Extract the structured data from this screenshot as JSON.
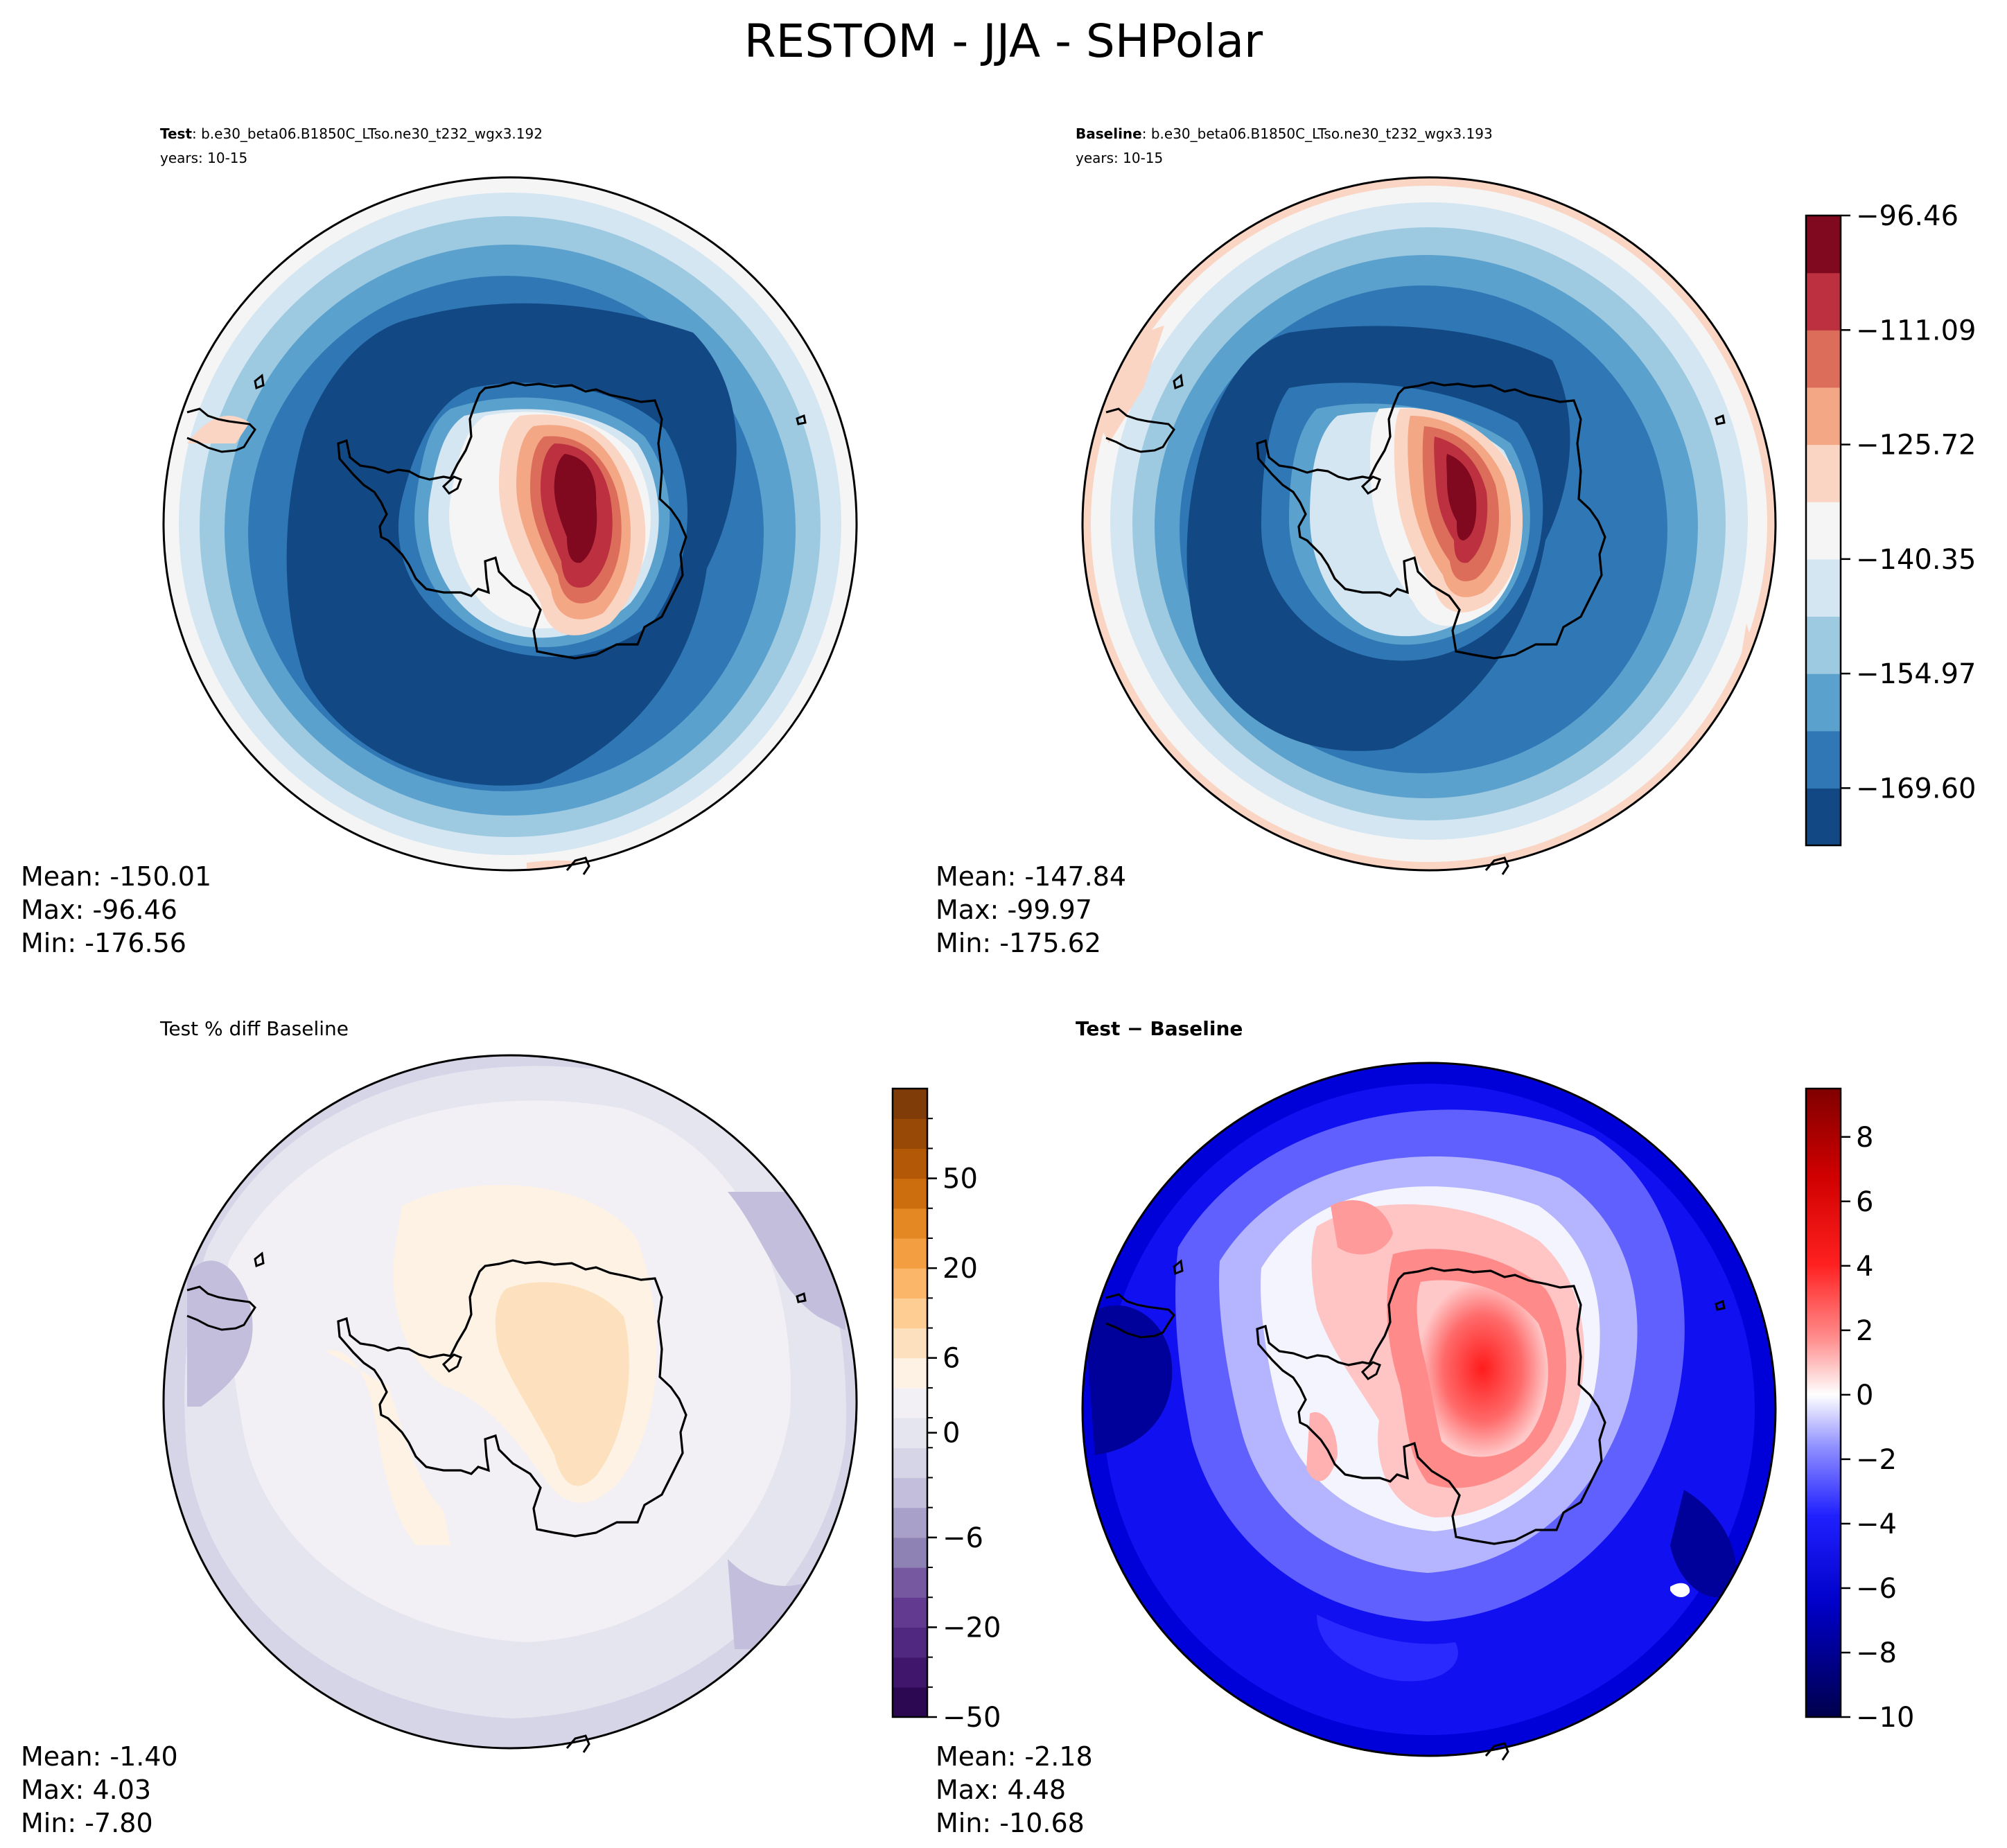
{
  "figure_title": "RESTOM - JJA - SHPolar",
  "chart_data": [
    {
      "type": "heatmap",
      "panel": "test",
      "title_bold": "Test",
      "title_rest": ": b.e30_beta06.B1850C_LTso.ne30_t232_wgx3.192",
      "subtitle": "years: 10-15",
      "stats": [
        "Mean: -150.01",
        "Max: -96.46",
        "Min: -176.56"
      ],
      "projection": "South polar stereographic",
      "field_description": "Strong minimum (~ -176) over the Southern Ocean ring, maximum (~ -96) over East Antarctica"
    },
    {
      "type": "heatmap",
      "panel": "baseline",
      "title_bold": "Baseline",
      "title_rest": ": b.e30_beta06.B1850C_LTso.ne30_t232_wgx3.193",
      "subtitle": "years: 10-15",
      "stats": [
        "Mean: -147.84",
        "Max: -99.97",
        "Min: -175.62"
      ],
      "colorbar": {
        "ticks": [
          "−96.46",
          "−111.09",
          "−125.72",
          "−140.35",
          "−154.97",
          "−169.60"
        ],
        "levels": [
          -176.91,
          -169.6,
          -162.29,
          -154.97,
          -147.66,
          -140.35,
          -133.03,
          -125.72,
          -118.4,
          -111.09,
          -103.78,
          -96.46
        ],
        "colors": [
          "#124984",
          "#2f78b5",
          "#5aa1cd",
          "#9ecae1",
          "#d4e6f1",
          "#f5f5f5",
          "#fbd5c3",
          "#f3a785",
          "#dc6d5b",
          "#bd3040",
          "#80081f"
        ]
      }
    },
    {
      "type": "heatmap",
      "panel": "pct_diff",
      "title": "Test % diff Baseline",
      "stats": [
        "Mean: -1.40",
        "Max:  4.03",
        "Min: -7.80"
      ],
      "colorbar": {
        "ticks": [
          "50",
          "20",
          "6",
          "0",
          "−6",
          "−20",
          "−50"
        ],
        "colors": [
          "#2c0853",
          "#3f166b",
          "#51287f",
          "#623a8f",
          "#75589f",
          "#8e82b5",
          "#a8a0c9",
          "#c2bedb",
          "#d6d5e8",
          "#e5e5f0",
          "#f2f0f5",
          "#fdf2e4",
          "#fde1bf",
          "#fdcd93",
          "#fbb66a",
          "#f39f41",
          "#e38823",
          "#cc6e0e",
          "#b35806",
          "#974905",
          "#7f3b08"
        ]
      }
    },
    {
      "type": "heatmap",
      "panel": "diff",
      "title": "Test − Baseline",
      "stats": [
        "Mean: -2.18",
        "Max:  4.48",
        "Min: -10.68"
      ],
      "colorbar": {
        "ticks": [
          "8",
          "6",
          "4",
          "2",
          "0",
          "−2",
          "−4",
          "−6",
          "−8",
          "−10"
        ],
        "range": [
          -10,
          9.5
        ]
      }
    }
  ]
}
